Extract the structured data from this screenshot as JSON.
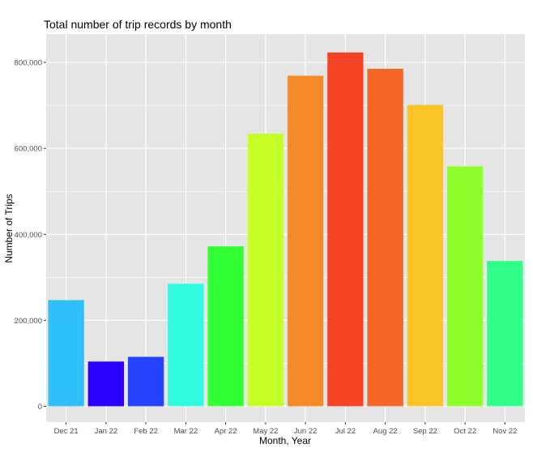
{
  "chart_data": {
    "type": "bar",
    "title": "Total number of trip records by month",
    "xlabel": "Month, Year",
    "ylabel": "Number of Trips",
    "categories": [
      "Dec 21",
      "Jan 22",
      "Feb 22",
      "Mar 22",
      "Apr 22",
      "May 22",
      "Jun 22",
      "Jul 22",
      "Aug 22",
      "Sep 22",
      "Oct 22",
      "Nov 22"
    ],
    "values": [
      247000,
      104000,
      115000,
      285000,
      372000,
      634000,
      769000,
      823000,
      785000,
      701000,
      558000,
      338000
    ],
    "colors": [
      "#2FBFFA",
      "#2A00FF",
      "#2443FA",
      "#2EFBDF",
      "#31FF31",
      "#C4FF26",
      "#F58A28",
      "#F54423",
      "#F46623",
      "#FBC426",
      "#8EFF2A",
      "#30FF8A"
    ],
    "ylim": [
      0,
      860000
    ],
    "yticks": [
      0,
      200000,
      400000,
      600000,
      800000
    ],
    "ytick_labels": [
      "0",
      "200,000",
      "400,000",
      "600,000",
      "800,000"
    ],
    "grid": true,
    "legend": "none",
    "panel_background": "#E5E5E5",
    "grid_color": "#FFFFFF"
  }
}
